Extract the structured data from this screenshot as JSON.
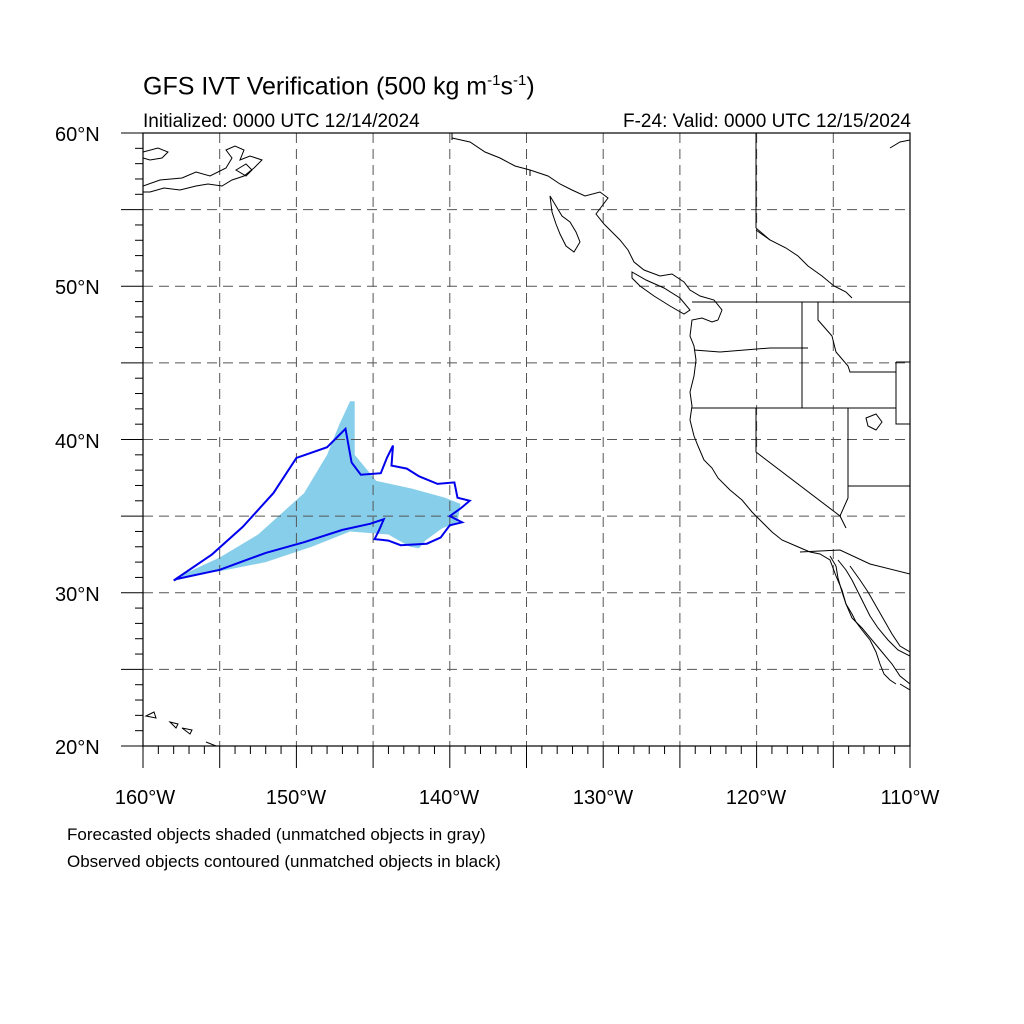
{
  "map": {
    "title_main": "GFS IVT Verification (500 kg m",
    "title_exp1": "-1",
    "title_mid": "s",
    "title_exp2": "-1",
    "title_close": ")",
    "subtitle_left": "Initialized: 0000 UTC 12/14/2024",
    "subtitle_right": "F-24: Valid: 0000 UTC 12/15/2024",
    "lon_range": [
      -160,
      -110
    ],
    "lat_range": [
      20,
      60
    ],
    "lat_labels": [
      "20°N",
      "30°N",
      "40°N",
      "50°N",
      "60°N"
    ],
    "lon_labels": [
      "160°W",
      "150°W",
      "140°W",
      "130°W",
      "120°W",
      "110°W"
    ],
    "grid_spacing_deg": 5,
    "grid_style": "dashed"
  },
  "legend": {
    "forecast_note": "Forecasted objects shaded (unmatched objects in gray)",
    "observed_note": "Observed objects contoured (unmatched objects in black)"
  },
  "colors": {
    "forecast_fill": "#87ceeb",
    "observed_contour": "#0000ee",
    "coast": "#000000",
    "grid": "#555555"
  },
  "objects": {
    "forecast_shape": [
      [
        -157.8,
        31
      ],
      [
        -155,
        32.3
      ],
      [
        -152.5,
        33.8
      ],
      [
        -149.5,
        36.5
      ],
      [
        -148,
        39
      ],
      [
        -147.2,
        41
      ],
      [
        -146.5,
        42.5
      ],
      [
        -146.2,
        42.5
      ],
      [
        -146.2,
        39
      ],
      [
        -144.8,
        37.3
      ],
      [
        -142.5,
        36.8
      ],
      [
        -140.3,
        36.2
      ],
      [
        -139.3,
        35.8
      ],
      [
        -139.5,
        34.6
      ],
      [
        -140.5,
        34.2
      ],
      [
        -141.6,
        33.4
      ],
      [
        -142,
        32.9
      ],
      [
        -142.6,
        33
      ],
      [
        -144,
        33.8
      ],
      [
        -146.5,
        34
      ],
      [
        -149,
        33
      ],
      [
        -152,
        32
      ],
      [
        -155,
        31.4
      ]
    ],
    "observed_contour": [
      [
        -158,
        30.8
      ],
      [
        -155.5,
        32.5
      ],
      [
        -153.5,
        34.3
      ],
      [
        -151.5,
        36.5
      ],
      [
        -150,
        38.8
      ],
      [
        -148,
        39.5
      ],
      [
        -146.8,
        40.7
      ],
      [
        -146.4,
        38.5
      ],
      [
        -145.8,
        37.7
      ],
      [
        -144.5,
        37.8
      ],
      [
        -144.1,
        38.8
      ],
      [
        -143.7,
        39.6
      ],
      [
        -143.8,
        38.3
      ],
      [
        -142.8,
        38.1
      ],
      [
        -142,
        37.6
      ],
      [
        -140.8,
        37.1
      ],
      [
        -139.7,
        37.2
      ],
      [
        -139.5,
        36.2
      ],
      [
        -138.7,
        36
      ],
      [
        -139.3,
        35.5
      ],
      [
        -140,
        35
      ],
      [
        -139.2,
        34.6
      ],
      [
        -140,
        34.4
      ],
      [
        -140.6,
        33.6
      ],
      [
        -141.5,
        33.2
      ],
      [
        -143.2,
        33.1
      ],
      [
        -144,
        33.4
      ],
      [
        -144.9,
        33.5
      ],
      [
        -144.6,
        34.1
      ],
      [
        -144.3,
        34.8
      ],
      [
        -145.2,
        34.5
      ],
      [
        -147,
        34.1
      ],
      [
        -149.5,
        33.3
      ],
      [
        -152,
        32.6
      ],
      [
        -155,
        31.5
      ],
      [
        -157.8,
        30.9
      ]
    ]
  }
}
